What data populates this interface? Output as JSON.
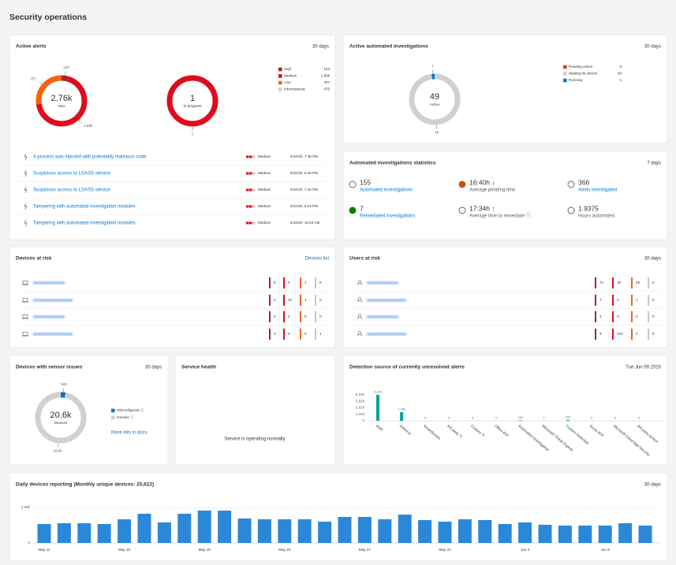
{
  "header": {
    "title": "Security operations"
  },
  "active_alerts": {
    "title": "Active alerts",
    "period": "30 days",
    "new_donut": {
      "center": "2.76k",
      "caption": "New",
      "values": [
        123,
        1880,
        757
      ],
      "value_labels": [
        "123",
        "1.88k",
        "757"
      ],
      "colors": [
        "#a4262c",
        "#e00b1c",
        "#f7630c"
      ]
    },
    "in_progress_donut": {
      "center": "1",
      "caption": "In progress",
      "values": [
        1
      ],
      "value_labels": [
        "1"
      ],
      "colors": [
        "#e00b1c"
      ]
    },
    "legend": [
      {
        "name": "High",
        "value": "123",
        "color": "#a4262c"
      },
      {
        "name": "Medium",
        "value": "1.88k",
        "color": "#e00b1c"
      },
      {
        "name": "Low",
        "value": "757",
        "color": "#f7630c"
      },
      {
        "name": "Informational",
        "value": "475",
        "color": "#d2d0ce"
      }
    ],
    "alerts": [
      {
        "title": "A process was injected with potentially malicious code",
        "severity": "Medium",
        "time": "6/10/20, 7:38 PM"
      },
      {
        "title": "Suspicious access to LSASS service",
        "severity": "Medium",
        "time": "6/10/20, 5:46 PM"
      },
      {
        "title": "Suspicious access to LSASS service",
        "severity": "Medium",
        "time": "6/10/20, 7:40 PM"
      },
      {
        "title": "Tampering with automated investigation modules",
        "severity": "Medium",
        "time": "6/10/20, 6:24 PM"
      },
      {
        "title": "Tampering with automated investigation modules",
        "severity": "Medium",
        "time": "6/10/20, 10:54 AM"
      }
    ]
  },
  "automated_investigations": {
    "title": "Active automated investigations",
    "period": "30 days",
    "donut": {
      "center": "49",
      "caption": "Active",
      "values": [
        0,
        48,
        1
      ],
      "value_labels": [
        null,
        "48",
        "1"
      ],
      "colors": [
        "#ca5010",
        "#d2d0ce",
        "#0078d4"
      ]
    },
    "legend": [
      {
        "name": "Pending action",
        "value": "0",
        "color": "#ca5010"
      },
      {
        "name": "Waiting for device",
        "value": "48",
        "color": "#d2d0ce"
      },
      {
        "name": "Running",
        "value": "1",
        "color": "#0078d4"
      }
    ]
  },
  "investigation_statistics": {
    "title": "Automated investigations statistics",
    "period": "7 days",
    "items": [
      {
        "value": "155",
        "label": "Automated investigations"
      },
      {
        "value": "16:40h ↓",
        "label": "Average pending time"
      },
      {
        "value": "366",
        "label": "Alerts investigated"
      },
      {
        "value": "7",
        "label": "Remediated investigations"
      },
      {
        "value": "17:34h ↑",
        "label": "Average time to remediate ⓘ"
      },
      {
        "value": "1.9375",
        "label": "Hours automated"
      }
    ]
  },
  "devices_at_risk": {
    "title": "Devices at risk",
    "link": "Devices list",
    "colors": [
      "#a4262c",
      "#e00b1c",
      "#f7630c",
      "#c8c6c4"
    ],
    "rows": [
      [
        6,
        0,
        1,
        0
      ],
      [
        4,
        10,
        1,
        0
      ],
      [
        4,
        2,
        0,
        0
      ],
      [
        3,
        4,
        0,
        1
      ]
    ]
  },
  "users_at_risk": {
    "title": "Users at risk",
    "period": "30 days",
    "colors": [
      "#a4262c",
      "#e00b1c",
      "#f7630c",
      "#c8c6c4"
    ],
    "rows": [
      [
        71,
        19,
        26,
        0
      ],
      [
        7,
        0,
        1,
        0
      ],
      [
        4,
        0,
        0,
        0
      ],
      [
        3,
        103,
        4,
        0
      ]
    ]
  },
  "sensor_issues": {
    "title": "Devices with sensor issues",
    "period": "30 days",
    "donut": {
      "center": "20.6k",
      "caption": "Devices",
      "values": [
        628,
        19900
      ],
      "value_labels": [
        "628",
        "19.9k"
      ],
      "colors": [
        "#0078d4",
        "#d2d0ce"
      ]
    },
    "legend": [
      {
        "name": "Misconfigured ⓘ",
        "color": "#0078d4"
      },
      {
        "name": "Inactive ⓘ",
        "color": "#d2d0ce"
      }
    ],
    "link": "More info in docs"
  },
  "service_health": {
    "title": "Service health",
    "status": "Service is operating normally"
  },
  "detection_source": {
    "title": "Detection source of currently unresolved alerts",
    "date": "Tue Jun 09 2020",
    "chart": {
      "type": "bar",
      "color": "#00a39a",
      "grid": false,
      "categories": [
        "EDR",
        "Antivirus",
        "SmartScreen",
        "3rd party TI",
        "Custom TI",
        "Office ATP",
        "Automated Investigation",
        "Microsoft Threat Experts",
        "Custom Detection",
        "Azure ATP",
        "Microsoft Cloud App Security",
        "3rd party sensor"
      ],
      "values": [
        5220,
        1750,
        0,
        0,
        6,
        0,
        115,
        1,
        192,
        0,
        0,
        0
      ],
      "value_labels": [
        "5.22k",
        "1.75k",
        "0",
        "0",
        "6",
        "0",
        "115",
        "1",
        "192",
        "0",
        "0",
        "0"
      ],
      "ylim": [
        0,
        5220
      ],
      "yticks": [
        0,
        {
          "value": 1310,
          "label": "1.31k"
        },
        {
          "value": 2610,
          "label": "2.61k"
        },
        {
          "value": 3920,
          "label": "3.92k"
        },
        {
          "value": 5220,
          "label": "5.22k"
        }
      ]
    }
  },
  "daily_devices": {
    "title": "Daily devices reporting (Monthly unique devices: 25,622)",
    "period": "30 days",
    "chart": {
      "type": "bar",
      "color": "#2b88d8",
      "grid": true,
      "categories": [
        "May 11",
        null,
        null,
        null,
        "May 15",
        null,
        null,
        null,
        "May 19",
        null,
        null,
        null,
        "May 23",
        null,
        null,
        null,
        "May 27",
        null,
        null,
        null,
        "May 31",
        null,
        null,
        null,
        "Jun 4",
        null,
        null,
        null,
        "Jun 8",
        null,
        null
      ],
      "values": [
        2660,
        2770,
        2770,
        2660,
        3320,
        4100,
        2880,
        4100,
        4540,
        4540,
        3430,
        3320,
        3320,
        3320,
        2990,
        3650,
        3650,
        3320,
        3980,
        3210,
        2990,
        3320,
        3210,
        2660,
        2880,
        2550,
        2440,
        2440,
        2440,
        2770,
        2440
      ],
      "ylim": [
        0,
        4980
      ],
      "yticks": [
        0,
        {
          "value": 4980,
          "label": "4.98k"
        }
      ]
    }
  }
}
